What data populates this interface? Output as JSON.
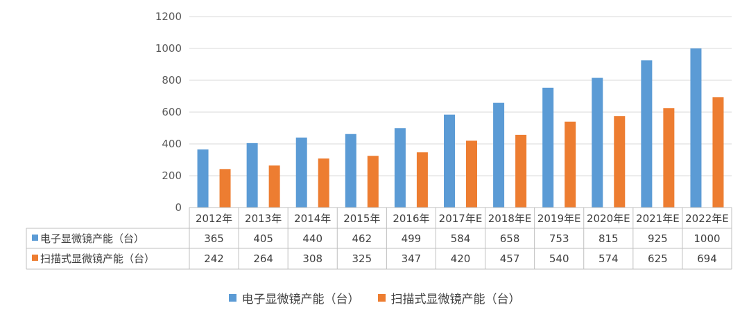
{
  "chart_data": {
    "type": "bar",
    "categories": [
      "2012年",
      "2013年",
      "2014年",
      "2015年",
      "2016年",
      "2017年E",
      "2018年E",
      "2019年E",
      "2020年E",
      "2021年E",
      "2022年E"
    ],
    "series": [
      {
        "name": "电子显微镜产能（台）",
        "color": "#5B9BD5",
        "values": [
          365,
          405,
          440,
          462,
          499,
          584,
          658,
          753,
          815,
          925,
          1000
        ]
      },
      {
        "name": "扫描式显微镜产能（台）",
        "color": "#ED7D31",
        "values": [
          242,
          264,
          308,
          325,
          347,
          420,
          457,
          540,
          574,
          625,
          694
        ]
      }
    ],
    "ylim": [
      0,
      1200
    ],
    "yticks": [
      0,
      200,
      400,
      600,
      800,
      1000,
      1200
    ],
    "grid": true,
    "data_table": true,
    "legend_position": "bottom"
  }
}
